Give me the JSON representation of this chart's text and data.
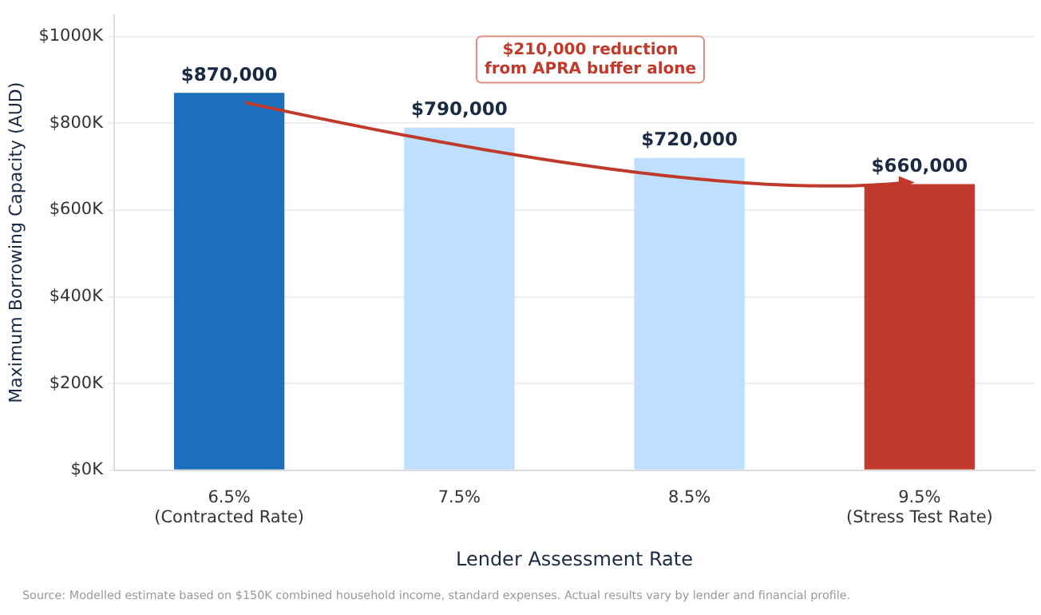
{
  "chart_data": {
    "type": "bar",
    "xlabel": "Lender Assessment Rate",
    "ylabel": "Maximum Borrowing Capacity (AUD)",
    "categories": [
      "6.5%\n(Contracted Rate)",
      "7.5%",
      "8.5%",
      "9.5%\n(Stress Test Rate)"
    ],
    "values": [
      870000,
      790000,
      720000,
      660000
    ],
    "colors": [
      "#1c6fbd",
      "#bee0fe",
      "#bee0fe",
      "#c0392b"
    ],
    "value_labels": [
      "$870,000",
      "$790,000",
      "$720,000",
      "$660,000"
    ],
    "ylim": [
      0,
      1050000
    ],
    "yticks": [
      {
        "value": 0,
        "label": "$0K"
      },
      {
        "value": 200000,
        "label": "$200K"
      },
      {
        "value": 400000,
        "label": "$400K"
      },
      {
        "value": 600000,
        "label": "$600K"
      },
      {
        "value": 800000,
        "label": "$800K"
      },
      {
        "value": 1000000,
        "label": "$1000K"
      }
    ],
    "grid": "y",
    "legend": false,
    "annotations": [
      "$210,000 reduction\nfrom APRA buffer alone",
      "Source: Modelled estimate based on $150K combined household income, standard expenses. Actual results vary by lender and financial profile."
    ]
  }
}
